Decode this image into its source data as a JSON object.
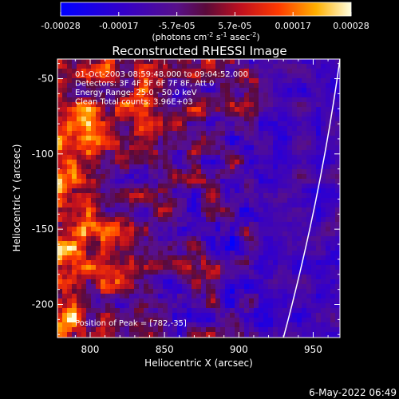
{
  "chart_data": {
    "type": "heatmap",
    "title": "Reconstructed RHESSI Image",
    "xlabel": "Heliocentric X (arcsec)",
    "ylabel": "Heliocentric Y (arcsec)",
    "xlim": [
      778,
      968
    ],
    "ylim": [
      -222,
      -37
    ],
    "x_ticks": [
      800,
      850,
      900,
      950
    ],
    "y_ticks": [
      -50,
      -100,
      -150,
      -200
    ],
    "colorbar": {
      "ticks": [
        "-0.00028",
        "-0.00017",
        "-5.7e-05",
        "5.7e-05",
        "0.00017",
        "0.00028"
      ],
      "unit_prefix": "(photons cm",
      "unit_sup1": "-2",
      "unit_mid": " s",
      "unit_sup2": "-1",
      "unit_mid2": " asec",
      "unit_sup3": "-2",
      "unit_suffix": ")",
      "range": [
        -0.00028,
        0.00028
      ]
    },
    "info_lines": [
      "01-Oct-2003 08:59:48.000 to 09:04:52.000",
      "Detectors: 3F 4F 5F 6F 7F 8F, Att 0",
      "Energy Range: 25.0 - 50.0 keV",
      "Clean     Total counts: 3.96E+03"
    ],
    "peak_label": "Position of Peak = [782,-35]",
    "limb_curve": [
      [
        968,
        -37
      ],
      [
        955,
        -130
      ],
      [
        930,
        -222
      ]
    ],
    "timestamp": "6-May-2022 06:49",
    "grid": false
  },
  "colors": {
    "background": "#000000",
    "text": "#ffffff",
    "limb": "#ffffff"
  }
}
